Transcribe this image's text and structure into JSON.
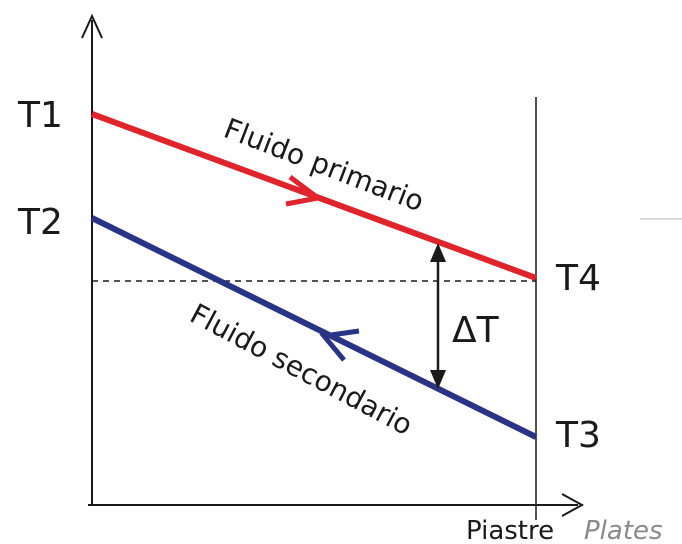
{
  "labels": {
    "t1": "T1",
    "t2": "T2",
    "t3": "T3",
    "t4": "T4",
    "delta_t": "ΔT",
    "primary_fluid": "Fluido primario",
    "secondary_fluid": "Fluido secondario",
    "x_axis_it": "Piastre",
    "x_axis_en": "Plates"
  },
  "colors": {
    "primary_line": "#e0242b",
    "secondary_line": "#2a3487",
    "axis": "#1a1a1a",
    "plates_text": "#8a8a8a"
  },
  "icons": {
    "primary_direction": "arrow-right-icon",
    "secondary_direction": "arrow-left-icon"
  }
}
